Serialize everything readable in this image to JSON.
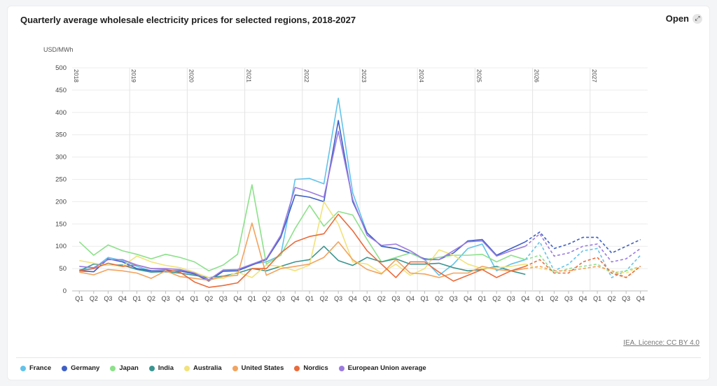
{
  "header": {
    "title": "Quarterly average wholesale electricity prices for selected regions, 2018-2027",
    "open_label": "Open",
    "open_icon": "expand-icon"
  },
  "footer": {
    "licence": "IEA. Licence: CC BY 4.0"
  },
  "chart_data": {
    "type": "line",
    "ylabel": "USD/MWh",
    "ylim": [
      0,
      500
    ],
    "yticks": [
      0,
      50,
      100,
      150,
      200,
      250,
      300,
      350,
      400,
      450,
      500
    ],
    "x": [
      "Q1",
      "Q2",
      "Q3",
      "Q4",
      "Q1",
      "Q2",
      "Q3",
      "Q4",
      "Q1",
      "Q2",
      "Q3",
      "Q4",
      "Q1",
      "Q2",
      "Q3",
      "Q4",
      "Q1",
      "Q2",
      "Q3",
      "Q4",
      "Q1",
      "Q2",
      "Q3",
      "Q4",
      "Q1",
      "Q2",
      "Q3",
      "Q4",
      "Q1",
      "Q2",
      "Q3",
      "Q4",
      "Q1",
      "Q2",
      "Q3",
      "Q4",
      "Q1",
      "Q2",
      "Q3",
      "Q4"
    ],
    "years": [
      "2018",
      "2019",
      "2020",
      "2021",
      "2022",
      "2023",
      "2024",
      "2025",
      "2026",
      "2027"
    ],
    "forecast_start_index": 31,
    "grid": true,
    "legend_position": "bottom",
    "series": [
      {
        "name": "France",
        "color": "#62c3ea",
        "values": [
          48,
          50,
          75,
          68,
          55,
          45,
          45,
          45,
          40,
          25,
          45,
          45,
          60,
          65,
          80,
          250,
          252,
          240,
          432,
          220,
          130,
          100,
          95,
          85,
          70,
          35,
          60,
          95,
          105,
          45,
          60,
          70,
          110,
          45,
          60,
          90,
          95,
          30,
          45,
          80
        ]
      },
      {
        "name": "Germany",
        "color": "#3e5fc6",
        "values": [
          45,
          43,
          72,
          65,
          50,
          45,
          45,
          45,
          38,
          22,
          44,
          45,
          58,
          70,
          120,
          215,
          210,
          200,
          382,
          200,
          130,
          100,
          95,
          85,
          72,
          70,
          85,
          112,
          115,
          80,
          95,
          110,
          132,
          95,
          105,
          120,
          120,
          85,
          100,
          115
        ]
      },
      {
        "name": "Japan",
        "color": "#8ce18a",
        "values": [
          110,
          80,
          103,
          90,
          82,
          72,
          82,
          75,
          65,
          45,
          58,
          82,
          238,
          60,
          80,
          140,
          192,
          145,
          178,
          170,
          115,
          65,
          75,
          85,
          70,
          75,
          80,
          80,
          82,
          65,
          80,
          70,
          80,
          40,
          50,
          55,
          60,
          40,
          45,
          55
        ]
      },
      {
        "name": "India",
        "color": "#3a9590",
        "values": [
          45,
          60,
          58,
          58,
          48,
          42,
          43,
          40,
          35,
          30,
          33,
          40,
          50,
          45,
          55,
          65,
          70,
          100,
          68,
          57,
          75,
          65,
          72,
          60,
          60,
          62,
          52,
          45,
          48,
          55,
          45,
          37,
          null,
          null,
          null,
          null,
          null,
          null,
          null,
          null
        ]
      },
      {
        "name": "Australia",
        "color": "#f2e27a",
        "values": [
          68,
          62,
          58,
          55,
          78,
          65,
          57,
          52,
          42,
          30,
          28,
          42,
          30,
          58,
          55,
          45,
          58,
          200,
          150,
          65,
          60,
          40,
          60,
          35,
          50,
          92,
          80,
          60,
          50,
          52,
          55,
          60,
          50,
          45,
          45,
          50,
          55,
          45,
          40,
          55
        ]
      },
      {
        "name": "United States",
        "color": "#f2a35e",
        "values": [
          42,
          36,
          48,
          45,
          40,
          28,
          45,
          32,
          28,
          24,
          32,
          35,
          152,
          35,
          50,
          55,
          60,
          75,
          110,
          70,
          48,
          38,
          70,
          40,
          38,
          30,
          40,
          40,
          55,
          48,
          45,
          50,
          55,
          45,
          45,
          50,
          55,
          45,
          30,
          55
        ]
      },
      {
        "name": "Nordics",
        "color": "#ea6b3b",
        "values": [
          45,
          50,
          62,
          55,
          58,
          50,
          48,
          42,
          20,
          8,
          12,
          18,
          50,
          50,
          85,
          110,
          122,
          128,
          172,
          135,
          90,
          60,
          30,
          65,
          65,
          42,
          22,
          35,
          48,
          30,
          45,
          55,
          70,
          40,
          40,
          65,
          75,
          40,
          30,
          55
        ]
      },
      {
        "name": "European Union average",
        "color": "#9b7be0",
        "values": [
          55,
          52,
          70,
          70,
          58,
          50,
          50,
          48,
          40,
          25,
          47,
          48,
          60,
          72,
          125,
          232,
          222,
          210,
          358,
          205,
          125,
          102,
          105,
          90,
          70,
          70,
          90,
          110,
          112,
          78,
          90,
          100,
          128,
          78,
          85,
          100,
          105,
          65,
          72,
          95
        ]
      }
    ]
  }
}
